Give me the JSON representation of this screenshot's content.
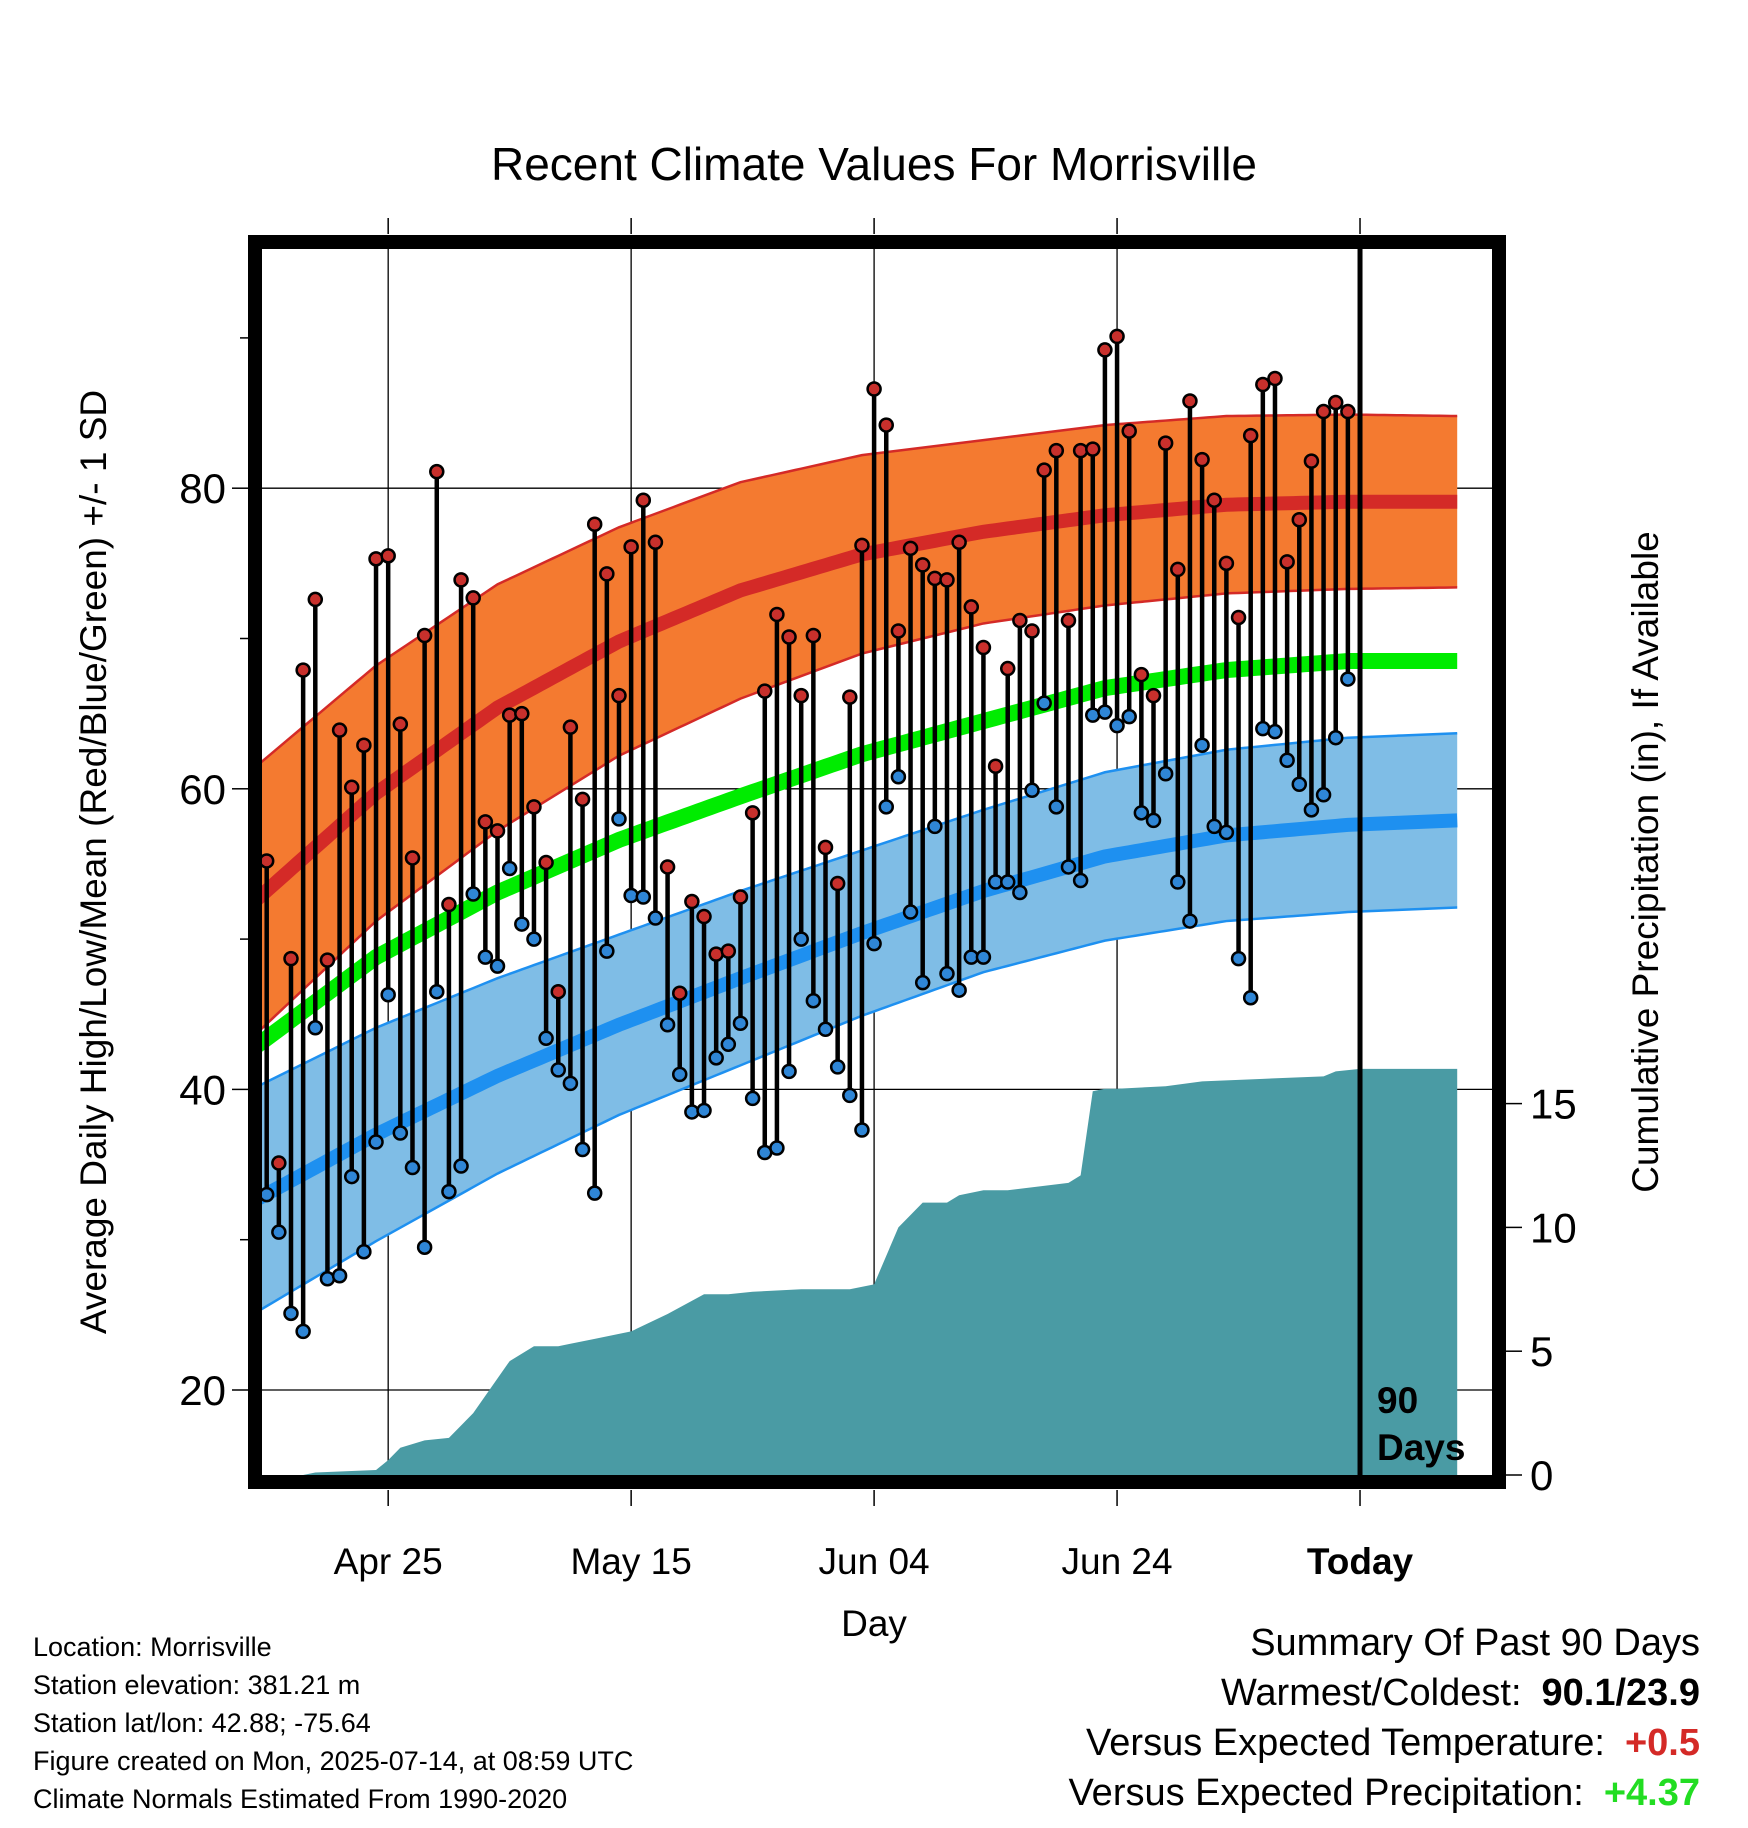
{
  "chart_data": {
    "type": "line",
    "title": "Recent Climate Values For Morrisville",
    "xlabel": "Day",
    "ylabel": "Average Daily High/Low/Mean (Red/Blue/Green) +/- 1 SD",
    "y2label": "Cumulative Precipitation (in), If Available",
    "ylim": [
      14.5,
      95.5
    ],
    "y2lim": [
      0,
      16.4
    ],
    "yticks": [
      20,
      40,
      60,
      80
    ],
    "y2ticks": [
      0,
      5,
      10,
      15
    ],
    "xlim": [
      -1,
      98
    ],
    "x_tick_days": [
      10,
      30,
      50,
      70,
      90
    ],
    "x_tick_labels": [
      "Apr 25",
      "May 15",
      "Jun 04",
      "Jun 24",
      "Today"
    ],
    "period_label_line1": "90",
    "period_label_line2": "Days",
    "grid": true,
    "highs": [
      55.2,
      35.1,
      48.7,
      67.9,
      72.6,
      48.6,
      63.9,
      60.1,
      62.9,
      75.3,
      75.5,
      64.3,
      55.4,
      70.2,
      81.1,
      52.3,
      73.9,
      72.7,
      57.8,
      57.2,
      64.9,
      65,
      58.8,
      55.1,
      46.5,
      64.1,
      59.3,
      77.6,
      74.3,
      66.2,
      76.1,
      79.2,
      76.4,
      54.8,
      46.4,
      52.5,
      51.5,
      49,
      49.2,
      52.8,
      58.4,
      66.5,
      71.6,
      70.1,
      66.2,
      70.2,
      56.1,
      53.7,
      66.1,
      76.2,
      86.6,
      84.2,
      70.5,
      76,
      74.9,
      74,
      73.9,
      76.4,
      72.1,
      69.4,
      61.5,
      68,
      71.2,
      70.5,
      81.2,
      82.5,
      71.2,
      82.5,
      82.6,
      89.2,
      90.1,
      83.8,
      67.6,
      66.2,
      83,
      74.6,
      85.8,
      81.9,
      79.2,
      75,
      71.4,
      83.5,
      86.9,
      87.3,
      75.1,
      77.9,
      81.8,
      85.1,
      85.7,
      85.1
    ],
    "lows": [
      33,
      30.5,
      25.1,
      23.9,
      44.1,
      27.4,
      27.6,
      34.2,
      29.2,
      36.5,
      46.3,
      37.1,
      34.8,
      29.5,
      46.5,
      33.2,
      34.9,
      53,
      48.8,
      48.2,
      54.7,
      51,
      50,
      43.4,
      41.3,
      40.4,
      36,
      33.1,
      49.2,
      58,
      52.9,
      52.8,
      51.4,
      44.3,
      41,
      38.5,
      38.6,
      42.1,
      43,
      44.4,
      39.4,
      35.8,
      36.1,
      41.2,
      50,
      45.9,
      44,
      41.5,
      39.6,
      37.3,
      49.7,
      58.8,
      60.8,
      51.8,
      47.1,
      57.5,
      47.7,
      46.6,
      48.8,
      48.8,
      53.8,
      53.8,
      53.1,
      59.9,
      65.7,
      58.8,
      54.8,
      53.9,
      64.9,
      65.1,
      64.2,
      64.8,
      58.4,
      57.9,
      61,
      53.8,
      51.2,
      62.9,
      57.5,
      57.1,
      48.7,
      46.1,
      64,
      63.8,
      61.9,
      60.3,
      58.6,
      59.6,
      63.4,
      67.3
    ],
    "normal_high": {
      "days": [
        -1,
        9,
        19,
        29,
        39,
        49,
        59,
        69,
        79,
        89,
        98
      ],
      "mean": [
        52.5,
        59.7,
        65.4,
        69.8,
        73.2,
        75.6,
        77.1,
        78.2,
        78.9,
        79.1,
        79.1
      ],
      "sd": [
        8.9,
        8.5,
        8.2,
        7.6,
        7.2,
        6.6,
        6.1,
        6,
        5.9,
        5.8,
        5.7
      ]
    },
    "normal_low": {
      "days": [
        -1,
        9,
        19,
        29,
        39,
        49,
        59,
        69,
        79,
        89,
        98
      ],
      "mean": [
        32.6,
        37,
        40.9,
        44.3,
        47.4,
        50.4,
        53.2,
        55.5,
        56.9,
        57.6,
        57.9
      ],
      "sd": [
        7.5,
        7.1,
        6.5,
        6,
        5.8,
        5.5,
        5.4,
        5.6,
        5.7,
        5.8,
        5.8
      ]
    },
    "normal_mean": {
      "days": [
        -1,
        9,
        19,
        29,
        39,
        49,
        59,
        69,
        79,
        89,
        98
      ],
      "values": [
        42.8,
        48.8,
        53.1,
        56.6,
        59.5,
        62.3,
        64.5,
        66.7,
        67.9,
        68.5,
        68.5
      ]
    },
    "cumulative_precip": {
      "days": [
        -1,
        3,
        4,
        9,
        10,
        11,
        13,
        15,
        17,
        20,
        22,
        24,
        25,
        27,
        30,
        33,
        36,
        38,
        40,
        44,
        48,
        50,
        52,
        53,
        54,
        56,
        57,
        59,
        61,
        66,
        67,
        68,
        69,
        70,
        74,
        77,
        82,
        87,
        88,
        90,
        98
      ],
      "values": [
        0,
        0,
        0.1,
        0.2,
        0.6,
        1.1,
        1.4,
        1.5,
        2.5,
        4.6,
        5.2,
        5.2,
        5.3,
        5.5,
        5.8,
        6.5,
        7.3,
        7.3,
        7.4,
        7.5,
        7.5,
        7.7,
        10,
        10.5,
        11,
        11,
        11.3,
        11.5,
        11.5,
        11.8,
        12.1,
        15.5,
        15.6,
        15.6,
        15.7,
        15.9,
        16,
        16.1,
        16.3,
        16.4,
        16.4
      ]
    },
    "colors": {
      "high_band": "#f47a30",
      "high_mean": "#d42a27",
      "low_band": "#7fbde6",
      "low_mean": "#1e90f0",
      "mean": "#00ec00",
      "precip": "#4a9ba4",
      "high_dot": "#c8302c",
      "low_dot": "#2f86d6"
    }
  },
  "location": {
    "location_line": "Location: Morrisville",
    "elevation_line": "Station elevation: 381.21 m",
    "latlon_line": "Station lat/lon: 42.88; -75.64",
    "created_line": "Figure created on Mon, 2025-07-14, at 08:59 UTC",
    "normals_line": "Climate Normals Estimated From 1990-2020"
  },
  "summary": {
    "title": "Summary Of Past 90 Days",
    "warm_cold_label": "Warmest/Coldest:",
    "warm_cold_value": "90.1/23.9",
    "temp_label": "Versus Expected Temperature:",
    "temp_value": "+0.5",
    "temp_color": "#d42a27",
    "precip_label": "Versus Expected Precipitation:",
    "precip_value": "+4.37",
    "precip_color": "#22dd22"
  }
}
